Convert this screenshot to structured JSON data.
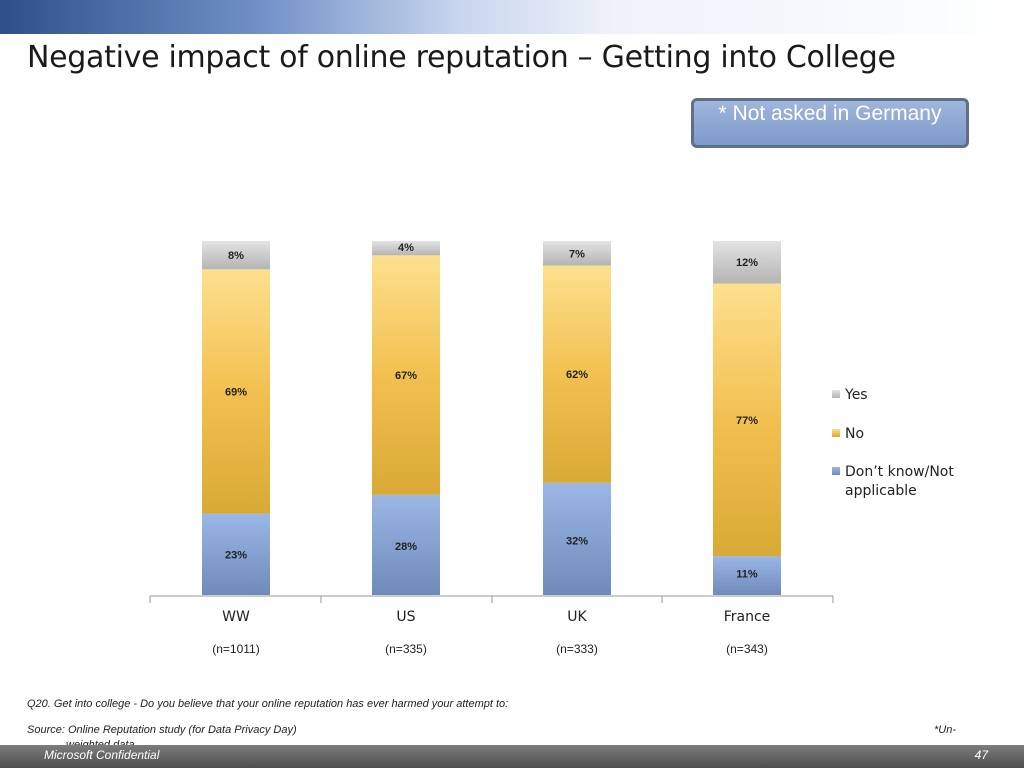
{
  "slide": {
    "title": "Negative impact of online reputation – Getting into College",
    "note": "* Not asked in Germany",
    "question": "Q20. Get into college - Do you believe that your online reputation has ever harmed your attempt to:",
    "source": "Source: Online Reputation study (for Data Privacy Day)",
    "unweighted_a": "*Un-",
    "unweighted_b": "weighted data",
    "footer_left": "Microsoft Confidential",
    "page_number": "47"
  },
  "colors": {
    "yes": "#c8c8c8",
    "no": "#f2c050",
    "dontknow": "#7e9fd4"
  },
  "chart_data": {
    "type": "bar",
    "stacked": true,
    "categories": [
      "WW",
      "US",
      "UK",
      "France"
    ],
    "sample_sizes": [
      "(n=1011)",
      "(n=335)",
      "(n=333)",
      "(n=343)"
    ],
    "series": [
      {
        "name": "Don’t know/Not applicable",
        "values": [
          23,
          28,
          32,
          11
        ],
        "labels": [
          "23%",
          "28%",
          "32%",
          "11%"
        ]
      },
      {
        "name": "No",
        "values": [
          69,
          67,
          62,
          77
        ],
        "labels": [
          "69%",
          "67%",
          "62%",
          "77%"
        ]
      },
      {
        "name": "Yes",
        "values": [
          8,
          4,
          7,
          12
        ],
        "labels": [
          "8%",
          "4%",
          "7%",
          "12%"
        ]
      }
    ],
    "ylim": [
      0,
      100
    ],
    "legend_position": "right",
    "grid": false
  }
}
